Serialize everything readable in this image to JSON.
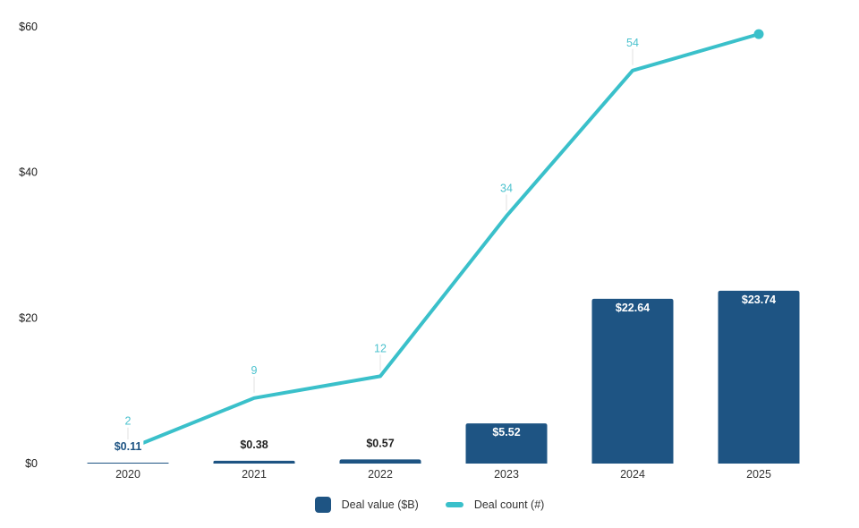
{
  "chart_data": {
    "type": "combo-bar-line",
    "title": "",
    "xlabel": "",
    "ylabel": "",
    "categories": [
      "2020",
      "2021",
      "2022",
      "2023",
      "2024",
      "2025"
    ],
    "series": [
      {
        "name": "Deal value ($B)",
        "type": "bar",
        "values": [
          0.11,
          0.38,
          0.57,
          5.52,
          22.64,
          23.74
        ],
        "labels": [
          "$0.11",
          "$0.38",
          "$0.57",
          "$5.52",
          "$22.64",
          "$23.74"
        ],
        "color": "#1e5483"
      },
      {
        "name": "Deal count (#)",
        "type": "line",
        "values": [
          2,
          9,
          12,
          34,
          54,
          59
        ],
        "labels": [
          "2",
          "9",
          "12",
          "34",
          "54",
          ""
        ],
        "color": "#3ac0ca",
        "end_marker": true
      }
    ],
    "y_ticks": [
      {
        "value": 0,
        "label": "$0"
      },
      {
        "value": 20,
        "label": "$20"
      },
      {
        "value": 40,
        "label": "$40"
      },
      {
        "value": 60,
        "label": "$60"
      }
    ],
    "ylim": [
      0,
      60
    ],
    "grid": false,
    "legend_position": "bottom"
  },
  "colors": {
    "background": "#ffffff",
    "bar": "#1e5483",
    "line": "#3ac0ca",
    "line_label": "#4bc2ce",
    "bar_label_outside": "#222222",
    "bar_label_small": "#1e5483",
    "bar_label_inside": "#ffffff",
    "axis_tick_text": "#1a1a1a",
    "x_label_text": "#333333",
    "leader_line": "#e0e0e0"
  }
}
